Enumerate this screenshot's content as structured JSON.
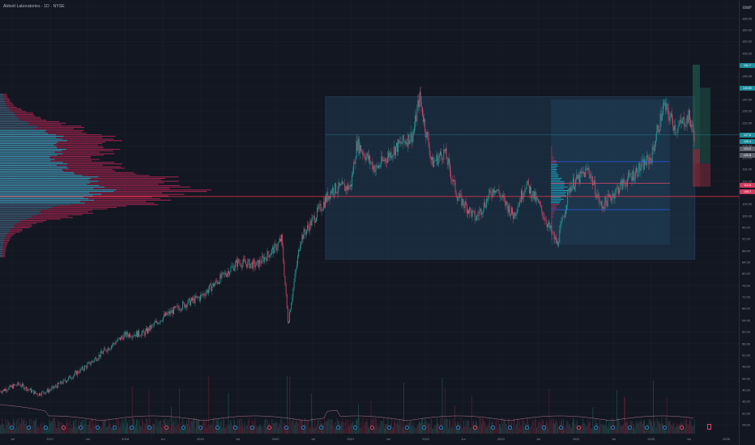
{
  "header": {
    "symbol_title": "Abbott Laboratories · 1D · NYSE"
  },
  "price_scale": {
    "currency": "USD",
    "ticks": [
      "172.00",
      "168.00",
      "164.00",
      "160.00",
      "156.00",
      "152.00",
      "148.00",
      "144.00",
      "140.00",
      "136.00",
      "132.00",
      "128.00",
      "124.00",
      "120.00",
      "116.00",
      "112.00",
      "108.00",
      "104.00",
      "100.00",
      "96.00",
      "92.00",
      "88.00",
      "84.00",
      "80.00",
      "76.00",
      "72.00",
      "68.00",
      "64.00",
      "60.00",
      "56.00",
      "52.00",
      "48.00",
      "44.00",
      "40.00",
      "36.00",
      "32.00",
      "28.00"
    ]
  },
  "time_axis": {
    "ticks": [
      "Jul",
      "2017",
      "Jul",
      "2018",
      "Jul",
      "2019",
      "Jul",
      "2020",
      "Jul",
      "2021",
      "Jul",
      "2022",
      "Jul",
      "2023",
      "Jul",
      "2024",
      "Jul",
      "2025",
      "Jul",
      "2026"
    ]
  },
  "price_tags": [
    {
      "label": "151.7",
      "color": "#1d8c9c"
    },
    {
      "label": "143.80",
      "color": "#1d8c9c"
    },
    {
      "label": "127.8",
      "color": "#1d8c9c"
    },
    {
      "label": "125.4",
      "color": "#1d8c9c"
    },
    {
      "label": "123.0",
      "color": "#5d606b"
    },
    {
      "label": "120.8",
      "color": "#5d606b"
    },
    {
      "label": "110.6",
      "color": "#d23a5e"
    },
    {
      "label": "108.3",
      "color": "#d23a5e"
    }
  ],
  "colors": {
    "background": "#131722",
    "up": "#26a69a",
    "down": "#e0476a",
    "profile_value": "#1fbad6",
    "profile_vol": "#c9285a",
    "poc_line": "#f23645",
    "range_box": "#1f3a52",
    "range_line": "#2962ff"
  },
  "icons": [
    "earnings-badge-icon",
    "dividend-badge-icon",
    "flag-icon"
  ],
  "chart_data": {
    "type": "candlestick",
    "title": "Abbott Laboratories · 1D · NYSE",
    "ylim": [
      28,
      174
    ],
    "x_range": [
      "2016-05",
      "2026-03"
    ],
    "poc_price": 106.6,
    "annotations": {
      "range_box_1": {
        "from": "2020-09",
        "to": "2025-08",
        "low": 85,
        "high": 141
      },
      "range_box_2": {
        "from": "2023-09",
        "to": "2025-04",
        "low": 90,
        "high": 140
      },
      "levels": [
        118.6,
        111.2,
        102.1
      ]
    },
    "series": [
      {
        "name": "ABT",
        "points": [
          [
            "2016-05",
            39.5
          ],
          [
            "2016-08",
            42
          ],
          [
            "2016-11",
            38.5
          ],
          [
            "2017-01",
            40
          ],
          [
            "2017-04",
            44
          ],
          [
            "2017-07",
            48.5
          ],
          [
            "2017-10",
            54
          ],
          [
            "2018-01",
            59
          ],
          [
            "2018-04",
            59.5
          ],
          [
            "2018-07",
            65
          ],
          [
            "2018-10",
            69
          ],
          [
            "2019-01",
            72
          ],
          [
            "2019-04",
            78
          ],
          [
            "2019-07",
            84
          ],
          [
            "2019-10",
            83
          ],
          [
            "2020-01",
            89
          ],
          [
            "2020-02",
            92
          ],
          [
            "2020-03",
            63
          ],
          [
            "2020-05",
            92
          ],
          [
            "2020-08",
            102
          ],
          [
            "2020-10",
            109
          ],
          [
            "2021-01",
            110
          ],
          [
            "2021-02",
            125
          ],
          [
            "2021-05",
            116
          ],
          [
            "2021-08",
            123
          ],
          [
            "2021-11",
            128
          ],
          [
            "2021-12",
            141
          ],
          [
            "2022-02",
            118
          ],
          [
            "2022-04",
            122
          ],
          [
            "2022-06",
            107
          ],
          [
            "2022-09",
            99
          ],
          [
            "2022-12",
            110
          ],
          [
            "2023-03",
            100
          ],
          [
            "2023-05",
            111
          ],
          [
            "2023-07",
            104
          ],
          [
            "2023-10",
            90
          ],
          [
            "2023-12",
            110
          ],
          [
            "2024-03",
            116
          ],
          [
            "2024-05",
            103
          ],
          [
            "2024-08",
            110
          ],
          [
            "2024-11",
            116
          ],
          [
            "2025-01",
            120
          ],
          [
            "2025-03",
            138
          ],
          [
            "2025-05",
            130
          ],
          [
            "2025-07",
            134
          ],
          [
            "2025-08",
            127
          ]
        ]
      }
    ]
  }
}
